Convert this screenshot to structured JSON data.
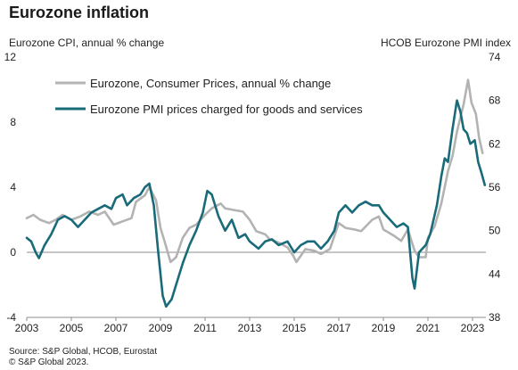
{
  "title": "Eurozone inflation",
  "left_axis_title": "Eurozone CPI, annual % change",
  "right_axis_title": "HCOB Eurozone PMI index",
  "source": "Source: S&P Global, HCOB, Eurostat",
  "copyright": "© S&P Global 2023.",
  "colors": {
    "cpi": "#b3b3b3",
    "pmi": "#1a6b7a"
  },
  "chart_data": {
    "type": "line",
    "title": "Eurozone inflation",
    "legend_placement": "top-left",
    "x_ticks": [
      "2003",
      "2005",
      "2007",
      "2009",
      "2011",
      "2013",
      "2015",
      "2017",
      "2019",
      "2021",
      "2023"
    ],
    "x_range": [
      2003,
      2023.6
    ],
    "y_left": {
      "label": "Eurozone CPI, annual % change",
      "range": [
        -4,
        12
      ],
      "ticks": [
        "-4",
        "0",
        "4",
        "8",
        "12"
      ]
    },
    "y_right": {
      "label": "HCOB Eurozone PMI index",
      "range": [
        38,
        74
      ],
      "ticks": [
        "38",
        "44",
        "50",
        "56",
        "62",
        "68",
        "74"
      ]
    },
    "series": [
      {
        "name": "Eurozone, Consumer Prices, annual % change",
        "axis": "left",
        "points": [
          [
            2003.0,
            2.1
          ],
          [
            2003.3,
            2.3
          ],
          [
            2003.6,
            2.0
          ],
          [
            2004.0,
            1.8
          ],
          [
            2004.3,
            2.0
          ],
          [
            2004.6,
            2.3
          ],
          [
            2005.0,
            2.0
          ],
          [
            2005.4,
            2.2
          ],
          [
            2005.8,
            2.5
          ],
          [
            2006.2,
            2.3
          ],
          [
            2006.5,
            2.5
          ],
          [
            2006.9,
            1.7
          ],
          [
            2007.3,
            1.9
          ],
          [
            2007.7,
            2.1
          ],
          [
            2007.9,
            3.1
          ],
          [
            2008.3,
            3.5
          ],
          [
            2008.5,
            4.0
          ],
          [
            2008.8,
            3.2
          ],
          [
            2009.0,
            1.5
          ],
          [
            2009.2,
            0.6
          ],
          [
            2009.45,
            -0.6
          ],
          [
            2009.7,
            -0.3
          ],
          [
            2010.0,
            0.9
          ],
          [
            2010.3,
            1.5
          ],
          [
            2010.6,
            1.7
          ],
          [
            2011.0,
            2.3
          ],
          [
            2011.3,
            2.7
          ],
          [
            2011.7,
            3.0
          ],
          [
            2011.9,
            2.7
          ],
          [
            2012.3,
            2.6
          ],
          [
            2012.7,
            2.5
          ],
          [
            2013.0,
            2.0
          ],
          [
            2013.3,
            1.3
          ],
          [
            2013.7,
            1.1
          ],
          [
            2013.9,
            0.8
          ],
          [
            2014.3,
            0.6
          ],
          [
            2014.7,
            0.3
          ],
          [
            2014.95,
            -0.2
          ],
          [
            2015.1,
            -0.6
          ],
          [
            2015.5,
            0.2
          ],
          [
            2015.9,
            0.1
          ],
          [
            2016.2,
            -0.1
          ],
          [
            2016.6,
            0.2
          ],
          [
            2017.0,
            1.8
          ],
          [
            2017.3,
            1.5
          ],
          [
            2017.7,
            1.4
          ],
          [
            2018.0,
            1.3
          ],
          [
            2018.5,
            2.0
          ],
          [
            2018.8,
            2.2
          ],
          [
            2019.0,
            1.4
          ],
          [
            2019.5,
            1.0
          ],
          [
            2019.8,
            0.7
          ],
          [
            2020.1,
            1.4
          ],
          [
            2020.4,
            0.1
          ],
          [
            2020.6,
            -0.3
          ],
          [
            2020.9,
            -0.3
          ],
          [
            2021.0,
            0.9
          ],
          [
            2021.3,
            1.6
          ],
          [
            2021.6,
            3.0
          ],
          [
            2021.9,
            5.0
          ],
          [
            2022.1,
            5.9
          ],
          [
            2022.3,
            7.4
          ],
          [
            2022.6,
            9.1
          ],
          [
            2022.8,
            10.6
          ],
          [
            2022.95,
            9.2
          ],
          [
            2023.15,
            8.5
          ],
          [
            2023.3,
            7.0
          ],
          [
            2023.45,
            6.1
          ]
        ]
      },
      {
        "name": "Eurozone PMI prices charged for goods and services",
        "axis": "right",
        "points": [
          [
            2003.0,
            49.0
          ],
          [
            2003.2,
            48.5
          ],
          [
            2003.4,
            47.0
          ],
          [
            2003.55,
            46.2
          ],
          [
            2003.8,
            48.0
          ],
          [
            2004.1,
            49.5
          ],
          [
            2004.4,
            51.5
          ],
          [
            2004.7,
            52.0
          ],
          [
            2005.0,
            51.5
          ],
          [
            2005.3,
            50.5
          ],
          [
            2005.6,
            51.5
          ],
          [
            2005.9,
            52.5
          ],
          [
            2006.2,
            53.0
          ],
          [
            2006.5,
            53.5
          ],
          [
            2006.8,
            53.0
          ],
          [
            2007.0,
            54.5
          ],
          [
            2007.3,
            55.0
          ],
          [
            2007.5,
            53.5
          ],
          [
            2007.8,
            54.5
          ],
          [
            2008.1,
            55.0
          ],
          [
            2008.3,
            56.0
          ],
          [
            2008.5,
            56.5
          ],
          [
            2008.7,
            53.5
          ],
          [
            2008.9,
            47.0
          ],
          [
            2009.1,
            41.0
          ],
          [
            2009.25,
            39.5
          ],
          [
            2009.5,
            40.5
          ],
          [
            2009.8,
            43.5
          ],
          [
            2010.0,
            45.5
          ],
          [
            2010.3,
            48.0
          ],
          [
            2010.6,
            50.0
          ],
          [
            2010.9,
            52.5
          ],
          [
            2011.1,
            55.5
          ],
          [
            2011.3,
            55.0
          ],
          [
            2011.6,
            52.0
          ],
          [
            2011.9,
            50.0
          ],
          [
            2012.2,
            51.5
          ],
          [
            2012.5,
            49.0
          ],
          [
            2012.8,
            49.5
          ],
          [
            2013.0,
            48.5
          ],
          [
            2013.4,
            47.5
          ],
          [
            2013.7,
            48.5
          ],
          [
            2014.0,
            48.8
          ],
          [
            2014.3,
            48.0
          ],
          [
            2014.7,
            48.5
          ],
          [
            2015.0,
            47.0
          ],
          [
            2015.3,
            48.0
          ],
          [
            2015.6,
            48.5
          ],
          [
            2015.9,
            48.5
          ],
          [
            2016.2,
            47.5
          ],
          [
            2016.5,
            48.5
          ],
          [
            2016.8,
            50.0
          ],
          [
            2017.0,
            52.5
          ],
          [
            2017.3,
            53.5
          ],
          [
            2017.6,
            52.5
          ],
          [
            2017.9,
            53.5
          ],
          [
            2018.2,
            54.0
          ],
          [
            2018.5,
            53.5
          ],
          [
            2018.8,
            53.5
          ],
          [
            2019.0,
            52.5
          ],
          [
            2019.3,
            51.5
          ],
          [
            2019.6,
            50.5
          ],
          [
            2019.9,
            51.0
          ],
          [
            2020.1,
            50.5
          ],
          [
            2020.3,
            43.5
          ],
          [
            2020.4,
            42.0
          ],
          [
            2020.6,
            47.0
          ],
          [
            2020.9,
            48.0
          ],
          [
            2021.1,
            49.5
          ],
          [
            2021.4,
            53.5
          ],
          [
            2021.6,
            57.5
          ],
          [
            2021.75,
            60.0
          ],
          [
            2021.9,
            59.5
          ],
          [
            2022.1,
            64.0
          ],
          [
            2022.3,
            68.0
          ],
          [
            2022.45,
            66.5
          ],
          [
            2022.6,
            64.0
          ],
          [
            2022.75,
            63.5
          ],
          [
            2022.9,
            62.0
          ],
          [
            2023.1,
            62.5
          ],
          [
            2023.25,
            59.5
          ],
          [
            2023.4,
            58.0
          ],
          [
            2023.55,
            56.3
          ]
        ]
      }
    ]
  }
}
